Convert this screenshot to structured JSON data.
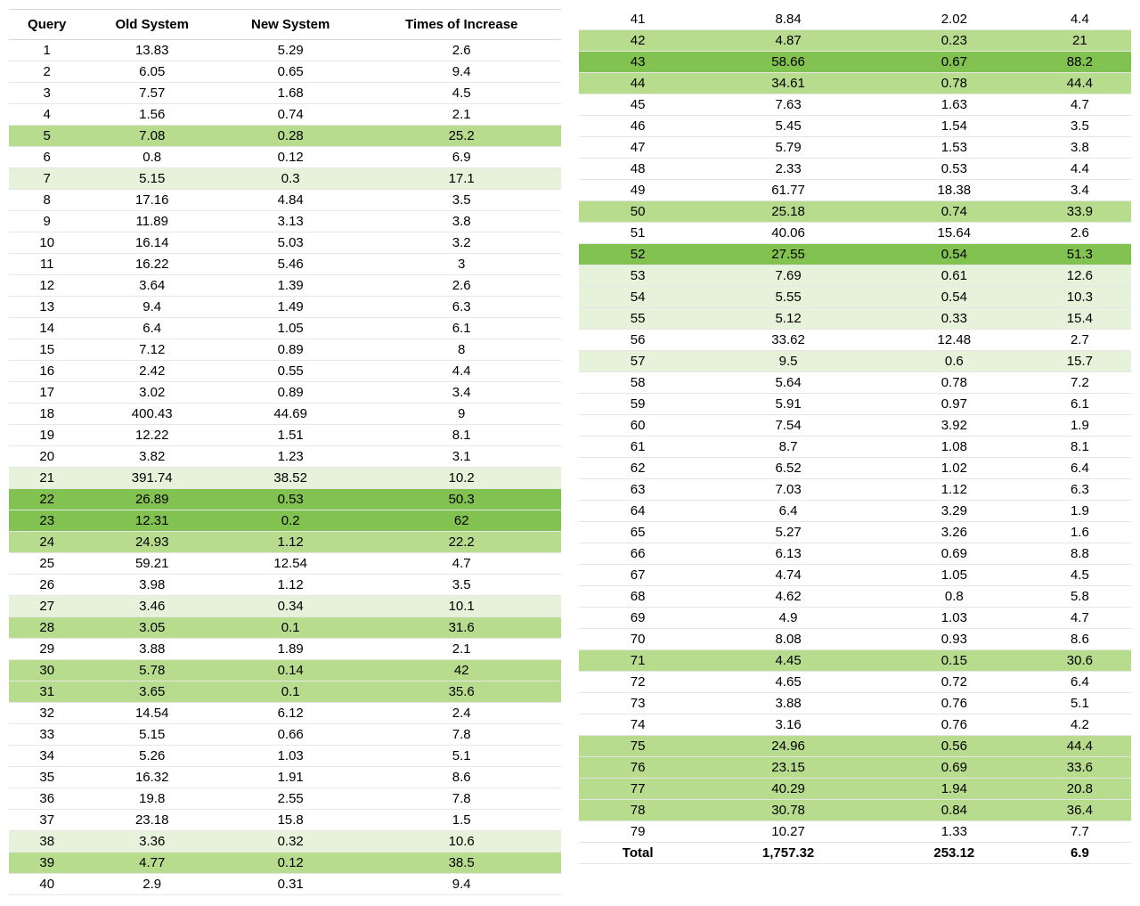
{
  "columns": [
    "Query",
    "Old System",
    "New System",
    "Times of Increase"
  ],
  "colors": {
    "none": "#ffffff",
    "light": "#e6f2da",
    "med": "#b8dc8d",
    "dark": "#82c250",
    "border": "#e6e6e6",
    "header_border": "#d7d7d7"
  },
  "total_label": "Total",
  "total": {
    "old": "1,757.32",
    "new": "253.12",
    "inc": "6.9"
  },
  "rows": [
    {
      "q": 1,
      "old": "13.83",
      "new": "5.29",
      "inc": "2.6",
      "shade": "none"
    },
    {
      "q": 2,
      "old": "6.05",
      "new": "0.65",
      "inc": "9.4",
      "shade": "none"
    },
    {
      "q": 3,
      "old": "7.57",
      "new": "1.68",
      "inc": "4.5",
      "shade": "none"
    },
    {
      "q": 4,
      "old": "1.56",
      "new": "0.74",
      "inc": "2.1",
      "shade": "none"
    },
    {
      "q": 5,
      "old": "7.08",
      "new": "0.28",
      "inc": "25.2",
      "shade": "med"
    },
    {
      "q": 6,
      "old": "0.8",
      "new": "0.12",
      "inc": "6.9",
      "shade": "none"
    },
    {
      "q": 7,
      "old": "5.15",
      "new": "0.3",
      "inc": "17.1",
      "shade": "light"
    },
    {
      "q": 8,
      "old": "17.16",
      "new": "4.84",
      "inc": "3.5",
      "shade": "none"
    },
    {
      "q": 9,
      "old": "11.89",
      "new": "3.13",
      "inc": "3.8",
      "shade": "none"
    },
    {
      "q": 10,
      "old": "16.14",
      "new": "5.03",
      "inc": "3.2",
      "shade": "none"
    },
    {
      "q": 11,
      "old": "16.22",
      "new": "5.46",
      "inc": "3",
      "shade": "none"
    },
    {
      "q": 12,
      "old": "3.64",
      "new": "1.39",
      "inc": "2.6",
      "shade": "none"
    },
    {
      "q": 13,
      "old": "9.4",
      "new": "1.49",
      "inc": "6.3",
      "shade": "none"
    },
    {
      "q": 14,
      "old": "6.4",
      "new": "1.05",
      "inc": "6.1",
      "shade": "none"
    },
    {
      "q": 15,
      "old": "7.12",
      "new": "0.89",
      "inc": "8",
      "shade": "none"
    },
    {
      "q": 16,
      "old": "2.42",
      "new": "0.55",
      "inc": "4.4",
      "shade": "none"
    },
    {
      "q": 17,
      "old": "3.02",
      "new": "0.89",
      "inc": "3.4",
      "shade": "none"
    },
    {
      "q": 18,
      "old": "400.43",
      "new": "44.69",
      "inc": "9",
      "shade": "none"
    },
    {
      "q": 19,
      "old": "12.22",
      "new": "1.51",
      "inc": "8.1",
      "shade": "none"
    },
    {
      "q": 20,
      "old": "3.82",
      "new": "1.23",
      "inc": "3.1",
      "shade": "none"
    },
    {
      "q": 21,
      "old": "391.74",
      "new": "38.52",
      "inc": "10.2",
      "shade": "light"
    },
    {
      "q": 22,
      "old": "26.89",
      "new": "0.53",
      "inc": "50.3",
      "shade": "dark"
    },
    {
      "q": 23,
      "old": "12.31",
      "new": "0.2",
      "inc": "62",
      "shade": "dark"
    },
    {
      "q": 24,
      "old": "24.93",
      "new": "1.12",
      "inc": "22.2",
      "shade": "med"
    },
    {
      "q": 25,
      "old": "59.21",
      "new": "12.54",
      "inc": "4.7",
      "shade": "none"
    },
    {
      "q": 26,
      "old": "3.98",
      "new": "1.12",
      "inc": "3.5",
      "shade": "none"
    },
    {
      "q": 27,
      "old": "3.46",
      "new": "0.34",
      "inc": "10.1",
      "shade": "light"
    },
    {
      "q": 28,
      "old": "3.05",
      "new": "0.1",
      "inc": "31.6",
      "shade": "med"
    },
    {
      "q": 29,
      "old": "3.88",
      "new": "1.89",
      "inc": "2.1",
      "shade": "none"
    },
    {
      "q": 30,
      "old": "5.78",
      "new": "0.14",
      "inc": "42",
      "shade": "med"
    },
    {
      "q": 31,
      "old": "3.65",
      "new": "0.1",
      "inc": "35.6",
      "shade": "med"
    },
    {
      "q": 32,
      "old": "14.54",
      "new": "6.12",
      "inc": "2.4",
      "shade": "none"
    },
    {
      "q": 33,
      "old": "5.15",
      "new": "0.66",
      "inc": "7.8",
      "shade": "none"
    },
    {
      "q": 34,
      "old": "5.26",
      "new": "1.03",
      "inc": "5.1",
      "shade": "none"
    },
    {
      "q": 35,
      "old": "16.32",
      "new": "1.91",
      "inc": "8.6",
      "shade": "none"
    },
    {
      "q": 36,
      "old": "19.8",
      "new": "2.55",
      "inc": "7.8",
      "shade": "none"
    },
    {
      "q": 37,
      "old": "23.18",
      "new": "15.8",
      "inc": "1.5",
      "shade": "none"
    },
    {
      "q": 38,
      "old": "3.36",
      "new": "0.32",
      "inc": "10.6",
      "shade": "light"
    },
    {
      "q": 39,
      "old": "4.77",
      "new": "0.12",
      "inc": "38.5",
      "shade": "med"
    },
    {
      "q": 40,
      "old": "2.9",
      "new": "0.31",
      "inc": "9.4",
      "shade": "none"
    },
    {
      "q": 41,
      "old": "8.84",
      "new": "2.02",
      "inc": "4.4",
      "shade": "none"
    },
    {
      "q": 42,
      "old": "4.87",
      "new": "0.23",
      "inc": "21",
      "shade": "med"
    },
    {
      "q": 43,
      "old": "58.66",
      "new": "0.67",
      "inc": "88.2",
      "shade": "dark"
    },
    {
      "q": 44,
      "old": "34.61",
      "new": "0.78",
      "inc": "44.4",
      "shade": "med"
    },
    {
      "q": 45,
      "old": "7.63",
      "new": "1.63",
      "inc": "4.7",
      "shade": "none"
    },
    {
      "q": 46,
      "old": "5.45",
      "new": "1.54",
      "inc": "3.5",
      "shade": "none"
    },
    {
      "q": 47,
      "old": "5.79",
      "new": "1.53",
      "inc": "3.8",
      "shade": "none"
    },
    {
      "q": 48,
      "old": "2.33",
      "new": "0.53",
      "inc": "4.4",
      "shade": "none"
    },
    {
      "q": 49,
      "old": "61.77",
      "new": "18.38",
      "inc": "3.4",
      "shade": "none"
    },
    {
      "q": 50,
      "old": "25.18",
      "new": "0.74",
      "inc": "33.9",
      "shade": "med"
    },
    {
      "q": 51,
      "old": "40.06",
      "new": "15.64",
      "inc": "2.6",
      "shade": "none"
    },
    {
      "q": 52,
      "old": "27.55",
      "new": "0.54",
      "inc": "51.3",
      "shade": "dark"
    },
    {
      "q": 53,
      "old": "7.69",
      "new": "0.61",
      "inc": "12.6",
      "shade": "light"
    },
    {
      "q": 54,
      "old": "5.55",
      "new": "0.54",
      "inc": "10.3",
      "shade": "light"
    },
    {
      "q": 55,
      "old": "5.12",
      "new": "0.33",
      "inc": "15.4",
      "shade": "light"
    },
    {
      "q": 56,
      "old": "33.62",
      "new": "12.48",
      "inc": "2.7",
      "shade": "none"
    },
    {
      "q": 57,
      "old": "9.5",
      "new": "0.6",
      "inc": "15.7",
      "shade": "light"
    },
    {
      "q": 58,
      "old": "5.64",
      "new": "0.78",
      "inc": "7.2",
      "shade": "none"
    },
    {
      "q": 59,
      "old": "5.91",
      "new": "0.97",
      "inc": "6.1",
      "shade": "none"
    },
    {
      "q": 60,
      "old": "7.54",
      "new": "3.92",
      "inc": "1.9",
      "shade": "none"
    },
    {
      "q": 61,
      "old": "8.7",
      "new": "1.08",
      "inc": "8.1",
      "shade": "none"
    },
    {
      "q": 62,
      "old": "6.52",
      "new": "1.02",
      "inc": "6.4",
      "shade": "none"
    },
    {
      "q": 63,
      "old": "7.03",
      "new": "1.12",
      "inc": "6.3",
      "shade": "none"
    },
    {
      "q": 64,
      "old": "6.4",
      "new": "3.29",
      "inc": "1.9",
      "shade": "none"
    },
    {
      "q": 65,
      "old": "5.27",
      "new": "3.26",
      "inc": "1.6",
      "shade": "none"
    },
    {
      "q": 66,
      "old": "6.13",
      "new": "0.69",
      "inc": "8.8",
      "shade": "none"
    },
    {
      "q": 67,
      "old": "4.74",
      "new": "1.05",
      "inc": "4.5",
      "shade": "none"
    },
    {
      "q": 68,
      "old": "4.62",
      "new": "0.8",
      "inc": "5.8",
      "shade": "none"
    },
    {
      "q": 69,
      "old": "4.9",
      "new": "1.03",
      "inc": "4.7",
      "shade": "none"
    },
    {
      "q": 70,
      "old": "8.08",
      "new": "0.93",
      "inc": "8.6",
      "shade": "none"
    },
    {
      "q": 71,
      "old": "4.45",
      "new": "0.15",
      "inc": "30.6",
      "shade": "med"
    },
    {
      "q": 72,
      "old": "4.65",
      "new": "0.72",
      "inc": "6.4",
      "shade": "none"
    },
    {
      "q": 73,
      "old": "3.88",
      "new": "0.76",
      "inc": "5.1",
      "shade": "none"
    },
    {
      "q": 74,
      "old": "3.16",
      "new": "0.76",
      "inc": "4.2",
      "shade": "none"
    },
    {
      "q": 75,
      "old": "24.96",
      "new": "0.56",
      "inc": "44.4",
      "shade": "med"
    },
    {
      "q": 76,
      "old": "23.15",
      "new": "0.69",
      "inc": "33.6",
      "shade": "med"
    },
    {
      "q": 77,
      "old": "40.29",
      "new": "1.94",
      "inc": "20.8",
      "shade": "med"
    },
    {
      "q": 78,
      "old": "30.78",
      "new": "0.84",
      "inc": "36.4",
      "shade": "med"
    },
    {
      "q": 79,
      "old": "10.27",
      "new": "1.33",
      "inc": "7.7",
      "shade": "none"
    }
  ],
  "split_after_q": 40
}
